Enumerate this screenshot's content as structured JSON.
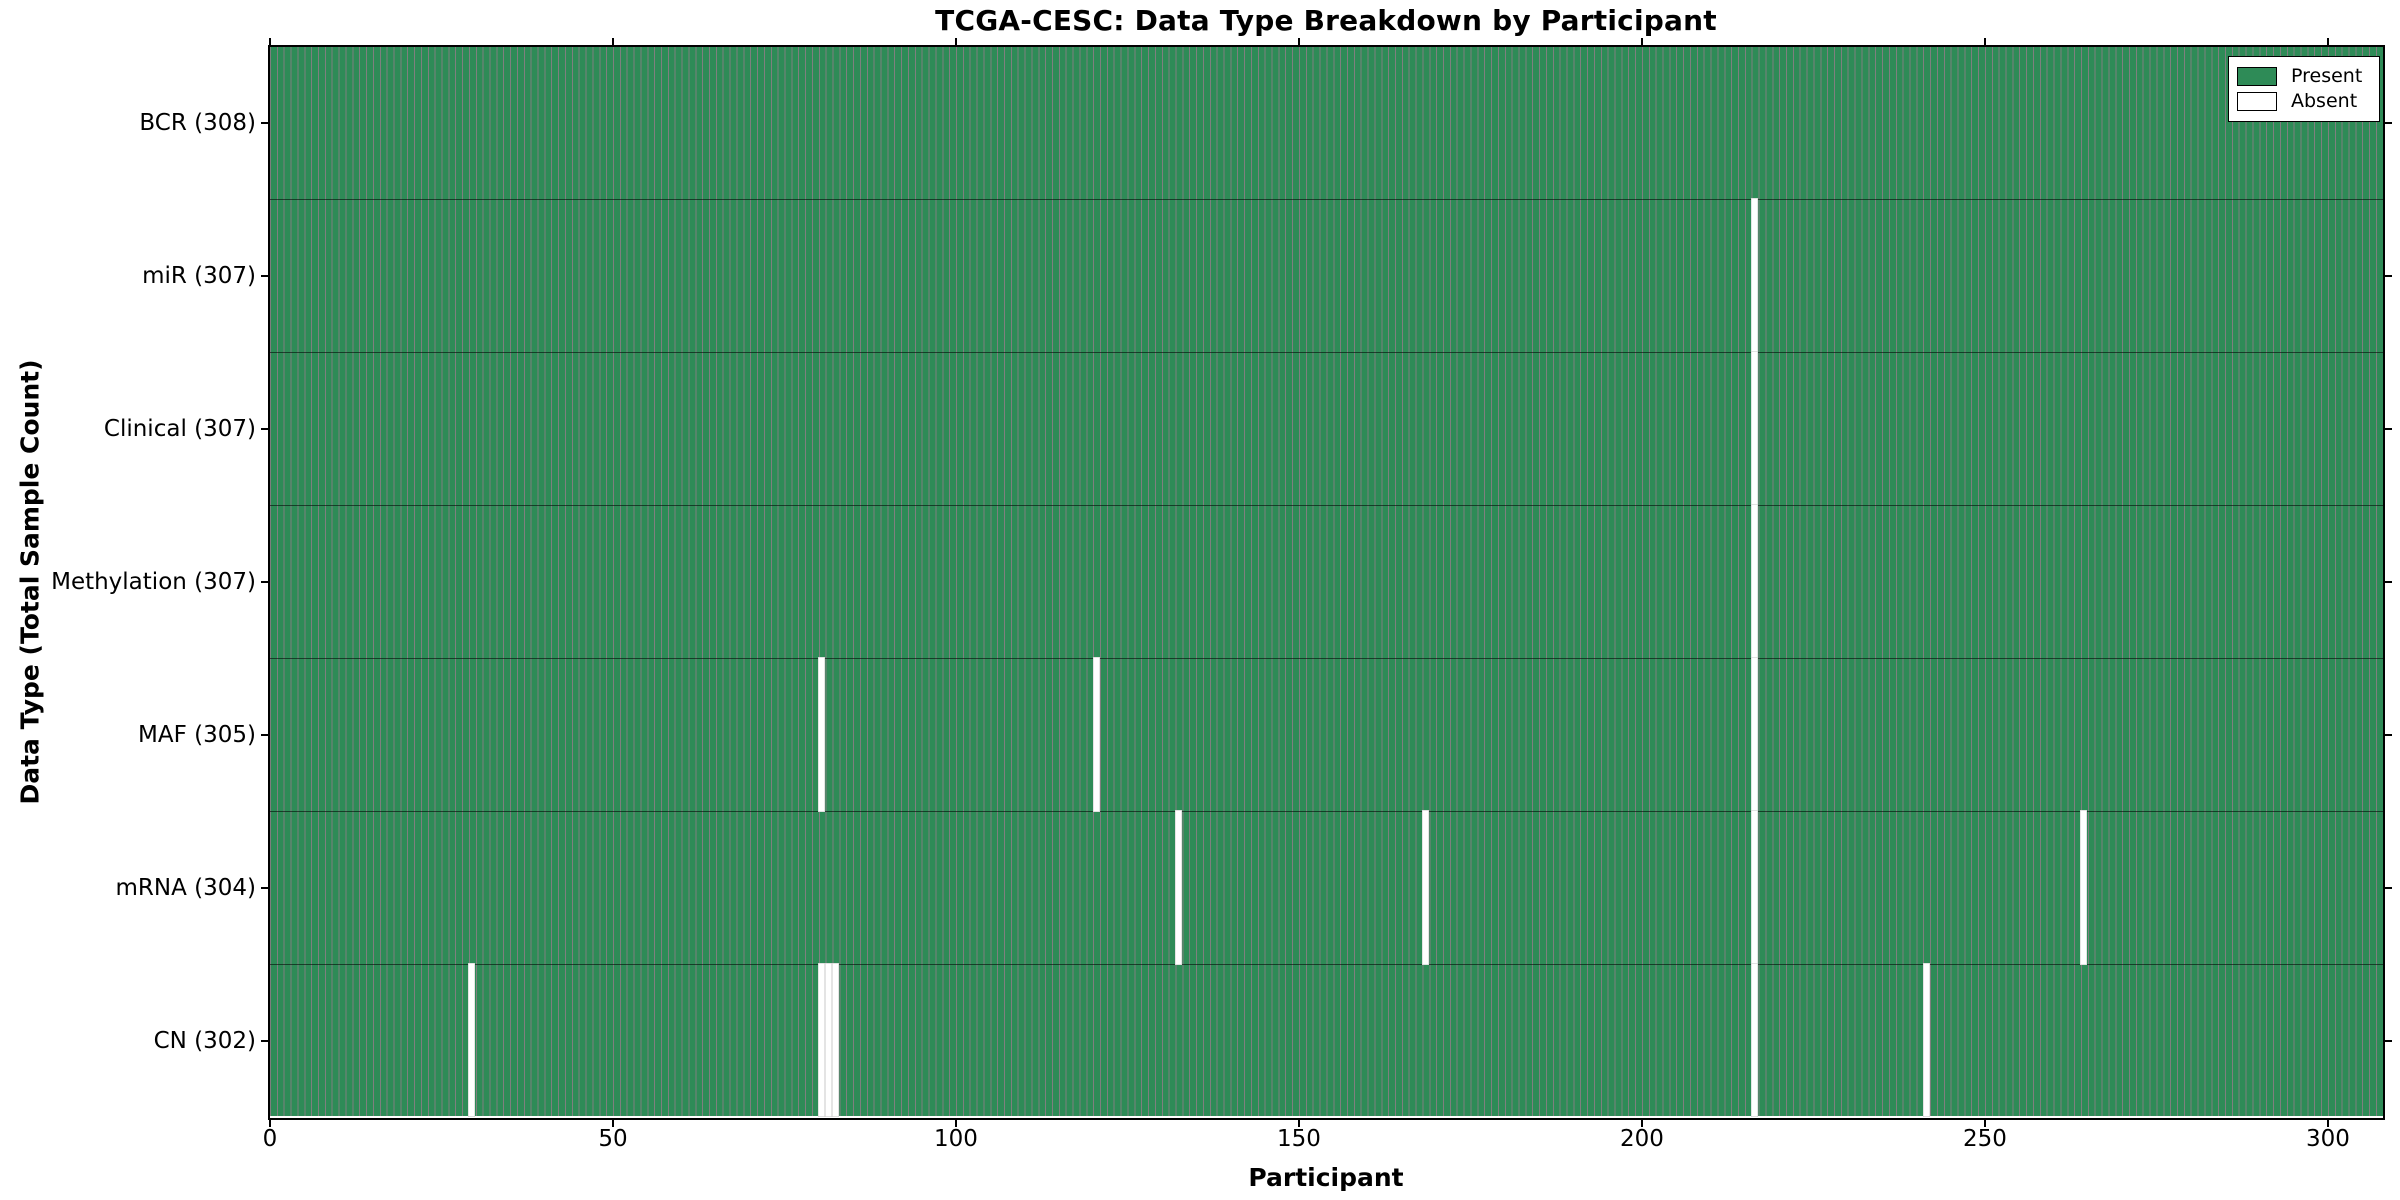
{
  "chart_data": {
    "type": "heatmap",
    "title": "TCGA-CESC: Data Type Breakdown by Participant",
    "xlabel": "Participant",
    "ylabel": "Data Type (Total Sample Count)",
    "n_participants": 308,
    "x_range": [
      0,
      308
    ],
    "x_ticks": [
      {
        "label": "0",
        "value": 0
      },
      {
        "label": "50",
        "value": 50
      },
      {
        "label": "100",
        "value": 100
      },
      {
        "label": "150",
        "value": 150
      },
      {
        "label": "200",
        "value": 200
      },
      {
        "label": "250",
        "value": 250
      },
      {
        "label": "300",
        "value": 300
      }
    ],
    "rows": [
      {
        "name": "BCR",
        "label": "BCR (308)",
        "total": 308,
        "absent_participants": []
      },
      {
        "name": "miR",
        "label": "miR (307)",
        "total": 307,
        "absent_participants": [
          216
        ]
      },
      {
        "name": "Clinical",
        "label": "Clinical (307)",
        "total": 307,
        "absent_participants": [
          216
        ]
      },
      {
        "name": "Methylation",
        "label": "Methylation (307)",
        "total": 307,
        "absent_participants": [
          216
        ]
      },
      {
        "name": "MAF",
        "label": "MAF (305)",
        "total": 305,
        "absent_participants": [
          80,
          120,
          216
        ]
      },
      {
        "name": "mRNA",
        "label": "mRNA (304)",
        "total": 304,
        "absent_participants": [
          132,
          168,
          216,
          264
        ]
      },
      {
        "name": "CN",
        "label": "CN (302)",
        "total": 302,
        "absent_participants": [
          29,
          80,
          81,
          82,
          216,
          241
        ]
      }
    ],
    "legend": {
      "position": "upper right",
      "entries": [
        {
          "label": "Present",
          "color": "#2e8b57"
        },
        {
          "label": "Absent",
          "color": "#ffffff"
        }
      ]
    },
    "colors": {
      "present": "#2e8b57",
      "absent": "#ffffff",
      "bar_edge": "rgba(0,0,0,0.5)",
      "spine": "#000000"
    },
    "grid": false
  }
}
